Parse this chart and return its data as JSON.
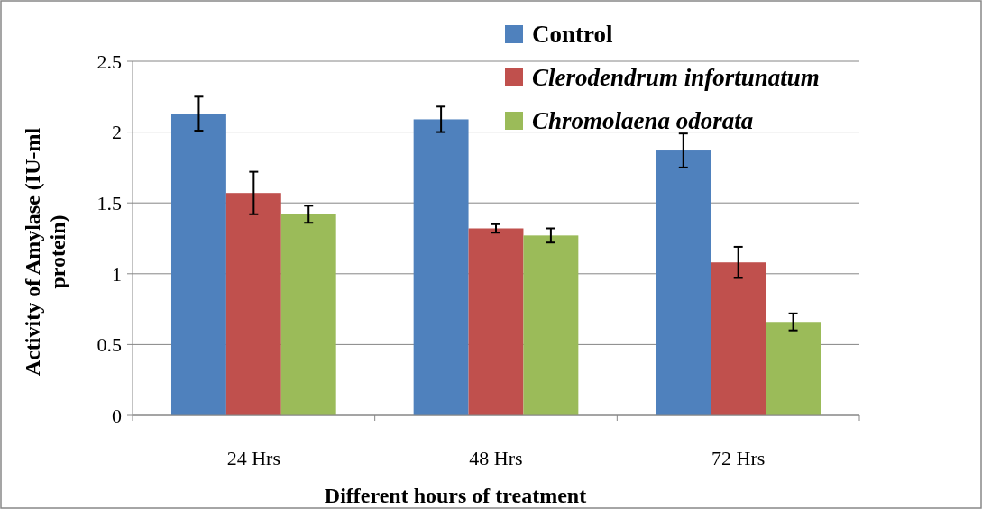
{
  "chart_data": {
    "type": "bar",
    "xlabel": "Different hours of  treatment",
    "ylabel": "Activity of Amylase (IU-ml protein)",
    "categories": [
      "24 Hrs",
      "48 Hrs",
      "72 Hrs"
    ],
    "series": [
      {
        "name": "Control",
        "color": "#4f81bd",
        "values": [
          2.13,
          2.09,
          1.87
        ],
        "errors": [
          0.12,
          0.09,
          0.12
        ]
      },
      {
        "name": "Clerodendrum infortunatum",
        "color": "#c0504d",
        "values": [
          1.57,
          1.32,
          1.08
        ],
        "errors": [
          0.15,
          0.03,
          0.11
        ]
      },
      {
        "name": "Chromolaena odorata",
        "color": "#9bbb59",
        "values": [
          1.42,
          1.27,
          0.66
        ],
        "errors": [
          0.06,
          0.05,
          0.06
        ]
      }
    ],
    "ylim": [
      0,
      2.5
    ],
    "yticks": [
      0,
      0.5,
      1,
      1.5,
      2,
      2.5
    ],
    "grid": "y",
    "legend": "top right"
  }
}
